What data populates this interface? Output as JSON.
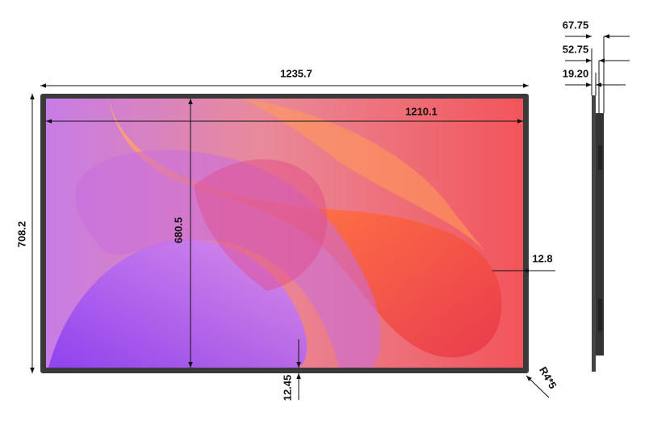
{
  "dimensions": {
    "overall_width": "1235.7",
    "display_width": "1210.1",
    "overall_height": "708.2",
    "display_height": "680.5",
    "side_bezel": "12.8",
    "bottom_bezel": "12.45",
    "corner_radius": "R4*5",
    "depth_total": "67.75",
    "depth_middle": "52.75",
    "depth_panel": "19.20"
  }
}
